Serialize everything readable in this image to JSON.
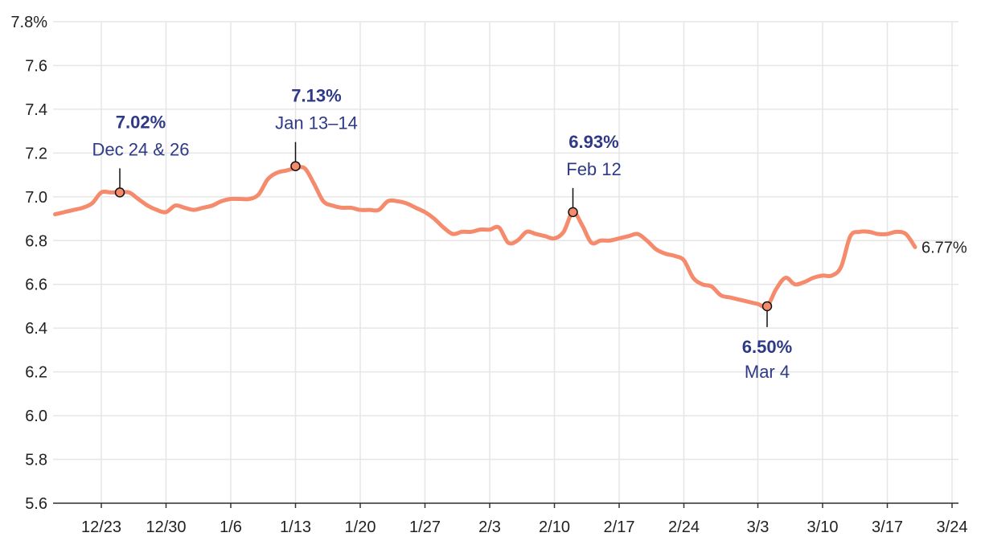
{
  "colors": {
    "line": "#f58b6c",
    "annotation": "#2e3a87",
    "grid": "#e6e6e6",
    "axis": "#333333",
    "text": "#222222"
  },
  "chart_data": {
    "type": "line",
    "grid": true,
    "ylim": [
      5.6,
      7.8
    ],
    "xlim": [
      "2023-12-16",
      "2024-03-24"
    ],
    "y_ticks": [
      "5.6",
      "5.8",
      "6.0",
      "6.2",
      "6.4",
      "6.6",
      "6.8",
      "7.0",
      "7.2",
      "7.4",
      "7.6",
      "7.8%"
    ],
    "x_ticks": [
      {
        "date": "2023-12-23",
        "label": "12/23"
      },
      {
        "date": "2023-12-30",
        "label": "12/30"
      },
      {
        "date": "2024-01-06",
        "label": "1/6"
      },
      {
        "date": "2024-01-13",
        "label": "1/13"
      },
      {
        "date": "2024-01-20",
        "label": "1/20"
      },
      {
        "date": "2024-01-27",
        "label": "1/27"
      },
      {
        "date": "2024-02-03",
        "label": "2/3"
      },
      {
        "date": "2024-02-10",
        "label": "2/10"
      },
      {
        "date": "2024-02-17",
        "label": "2/17"
      },
      {
        "date": "2024-02-24",
        "label": "2/24"
      },
      {
        "date": "2024-03-03",
        "label": "3/3"
      },
      {
        "date": "2024-03-10",
        "label": "3/10"
      },
      {
        "date": "2024-03-17",
        "label": "3/17"
      },
      {
        "date": "2024-03-24",
        "label": "3/24"
      }
    ],
    "series": [
      {
        "points": [
          [
            "2023-12-18",
            6.92
          ],
          [
            "2023-12-19",
            6.93
          ],
          [
            "2023-12-20",
            6.94
          ],
          [
            "2023-12-21",
            6.95
          ],
          [
            "2023-12-22",
            6.97
          ],
          [
            "2023-12-23",
            7.02
          ],
          [
            "2023-12-24",
            7.02
          ],
          [
            "2023-12-25",
            7.02
          ],
          [
            "2023-12-26",
            7.02
          ],
          [
            "2023-12-27",
            6.99
          ],
          [
            "2023-12-28",
            6.96
          ],
          [
            "2023-12-29",
            6.94
          ],
          [
            "2023-12-30",
            6.93
          ],
          [
            "2023-12-31",
            6.96
          ],
          [
            "2024-01-01",
            6.95
          ],
          [
            "2024-01-02",
            6.94
          ],
          [
            "2024-01-03",
            6.95
          ],
          [
            "2024-01-04",
            6.96
          ],
          [
            "2024-01-05",
            6.98
          ],
          [
            "2024-01-06",
            6.99
          ],
          [
            "2024-01-07",
            6.99
          ],
          [
            "2024-01-08",
            6.99
          ],
          [
            "2024-01-09",
            7.01
          ],
          [
            "2024-01-10",
            7.08
          ],
          [
            "2024-01-11",
            7.11
          ],
          [
            "2024-01-12",
            7.12
          ],
          [
            "2024-01-13",
            7.13
          ],
          [
            "2024-01-14",
            7.13
          ],
          [
            "2024-01-15",
            7.06
          ],
          [
            "2024-01-16",
            6.98
          ],
          [
            "2024-01-17",
            6.96
          ],
          [
            "2024-01-18",
            6.95
          ],
          [
            "2024-01-19",
            6.95
          ],
          [
            "2024-01-20",
            6.94
          ],
          [
            "2024-01-21",
            6.94
          ],
          [
            "2024-01-22",
            6.94
          ],
          [
            "2024-01-23",
            6.98
          ],
          [
            "2024-01-24",
            6.98
          ],
          [
            "2024-01-25",
            6.97
          ],
          [
            "2024-01-26",
            6.95
          ],
          [
            "2024-01-27",
            6.93
          ],
          [
            "2024-01-28",
            6.9
          ],
          [
            "2024-01-29",
            6.86
          ],
          [
            "2024-01-30",
            6.83
          ],
          [
            "2024-01-31",
            6.84
          ],
          [
            "2024-02-01",
            6.84
          ],
          [
            "2024-02-02",
            6.85
          ],
          [
            "2024-02-03",
            6.85
          ],
          [
            "2024-02-04",
            6.86
          ],
          [
            "2024-02-05",
            6.79
          ],
          [
            "2024-02-06",
            6.8
          ],
          [
            "2024-02-07",
            6.84
          ],
          [
            "2024-02-08",
            6.83
          ],
          [
            "2024-02-09",
            6.82
          ],
          [
            "2024-02-10",
            6.81
          ],
          [
            "2024-02-11",
            6.84
          ],
          [
            "2024-02-12",
            6.93
          ],
          [
            "2024-02-13",
            6.87
          ],
          [
            "2024-02-14",
            6.79
          ],
          [
            "2024-02-15",
            6.8
          ],
          [
            "2024-02-16",
            6.8
          ],
          [
            "2024-02-17",
            6.81
          ],
          [
            "2024-02-18",
            6.82
          ],
          [
            "2024-02-19",
            6.83
          ],
          [
            "2024-02-20",
            6.8
          ],
          [
            "2024-02-21",
            6.76
          ],
          [
            "2024-02-22",
            6.74
          ],
          [
            "2024-02-23",
            6.73
          ],
          [
            "2024-02-24",
            6.71
          ],
          [
            "2024-02-25",
            6.63
          ],
          [
            "2024-02-26",
            6.6
          ],
          [
            "2024-02-27",
            6.59
          ],
          [
            "2024-02-28",
            6.55
          ],
          [
            "2024-02-29",
            6.54
          ],
          [
            "2024-03-01",
            6.53
          ],
          [
            "2024-03-02",
            6.52
          ],
          [
            "2024-03-03",
            6.51
          ],
          [
            "2024-03-04",
            6.5
          ],
          [
            "2024-03-05",
            6.58
          ],
          [
            "2024-03-06",
            6.63
          ],
          [
            "2024-03-07",
            6.6
          ],
          [
            "2024-03-08",
            6.61
          ],
          [
            "2024-03-09",
            6.63
          ],
          [
            "2024-03-10",
            6.64
          ],
          [
            "2024-03-11",
            6.64
          ],
          [
            "2024-03-12",
            6.68
          ],
          [
            "2024-03-13",
            6.82
          ],
          [
            "2024-03-14",
            6.84
          ],
          [
            "2024-03-15",
            6.84
          ],
          [
            "2024-03-16",
            6.83
          ],
          [
            "2024-03-17",
            6.83
          ],
          [
            "2024-03-18",
            6.84
          ],
          [
            "2024-03-19",
            6.83
          ],
          [
            "2024-03-20",
            6.77
          ]
        ]
      }
    ],
    "annotations": [
      {
        "date": "2023-12-25",
        "y": 7.02,
        "value": "7.02%",
        "label": "Dec 24 & 26",
        "position": "above"
      },
      {
        "date": "2024-01-13",
        "y": 7.14,
        "value": "7.13%",
        "label": "Jan 13–14",
        "position": "above"
      },
      {
        "date": "2024-02-12",
        "y": 6.93,
        "value": "6.93%",
        "label": "Feb 12",
        "position": "above"
      },
      {
        "date": "2024-03-04",
        "y": 6.5,
        "value": "6.50%",
        "label": "Mar 4",
        "position": "below"
      }
    ],
    "end_label": {
      "date": "2024-03-20",
      "y": 6.77,
      "text": "6.77%"
    }
  }
}
